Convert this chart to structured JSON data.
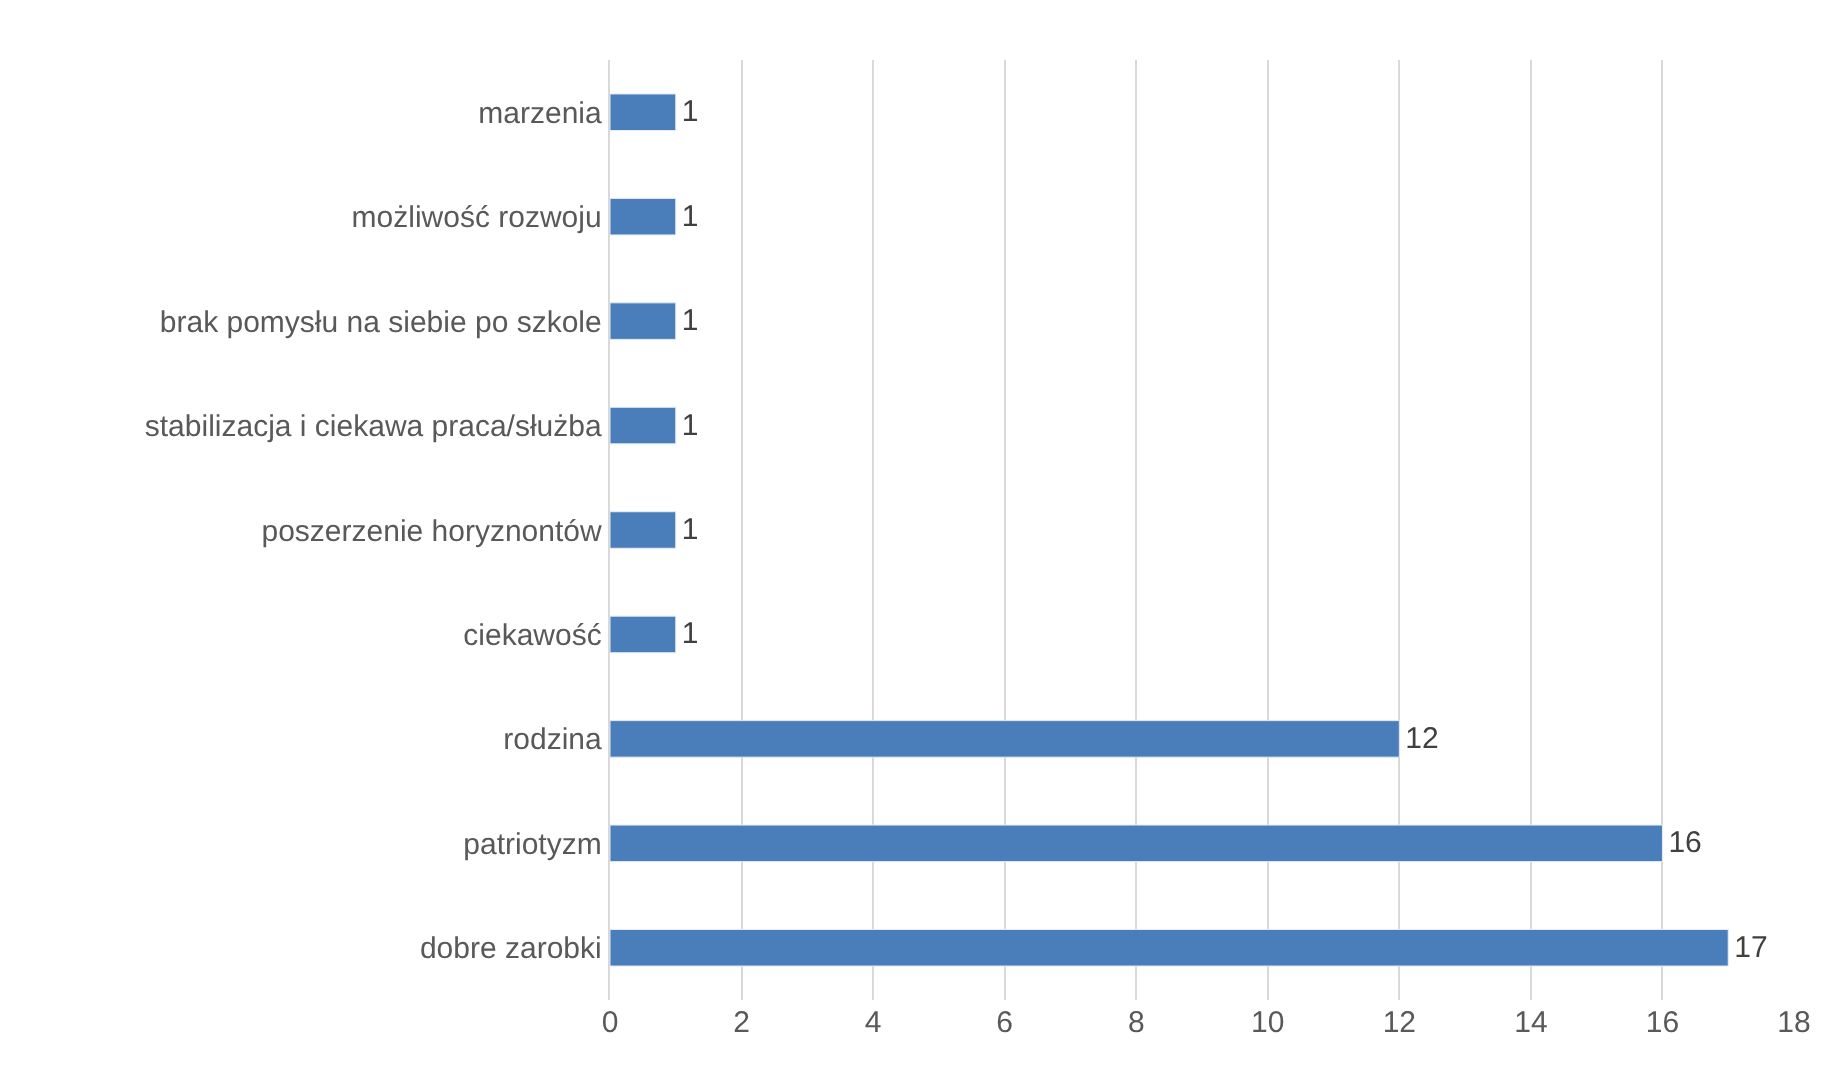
{
  "chart_data": {
    "type": "bar",
    "orientation": "horizontal",
    "categories": [
      "marzenia",
      "możliwość rozwoju",
      "brak pomysłu na siebie po szkole",
      "stabilizacja i ciekawa praca/służba",
      "poszerzenie horyznontów",
      "ciekawość",
      "rodzina",
      "patriotyzm",
      "dobre zarobki"
    ],
    "values": [
      1,
      1,
      1,
      1,
      1,
      1,
      12,
      16,
      17
    ],
    "color": "#4a7ebb",
    "xlim": [
      0,
      18
    ],
    "xticks": [
      0,
      2,
      4,
      6,
      8,
      10,
      12,
      14,
      16,
      18
    ],
    "grid": "x",
    "data_labels": true,
    "legend": false
  }
}
